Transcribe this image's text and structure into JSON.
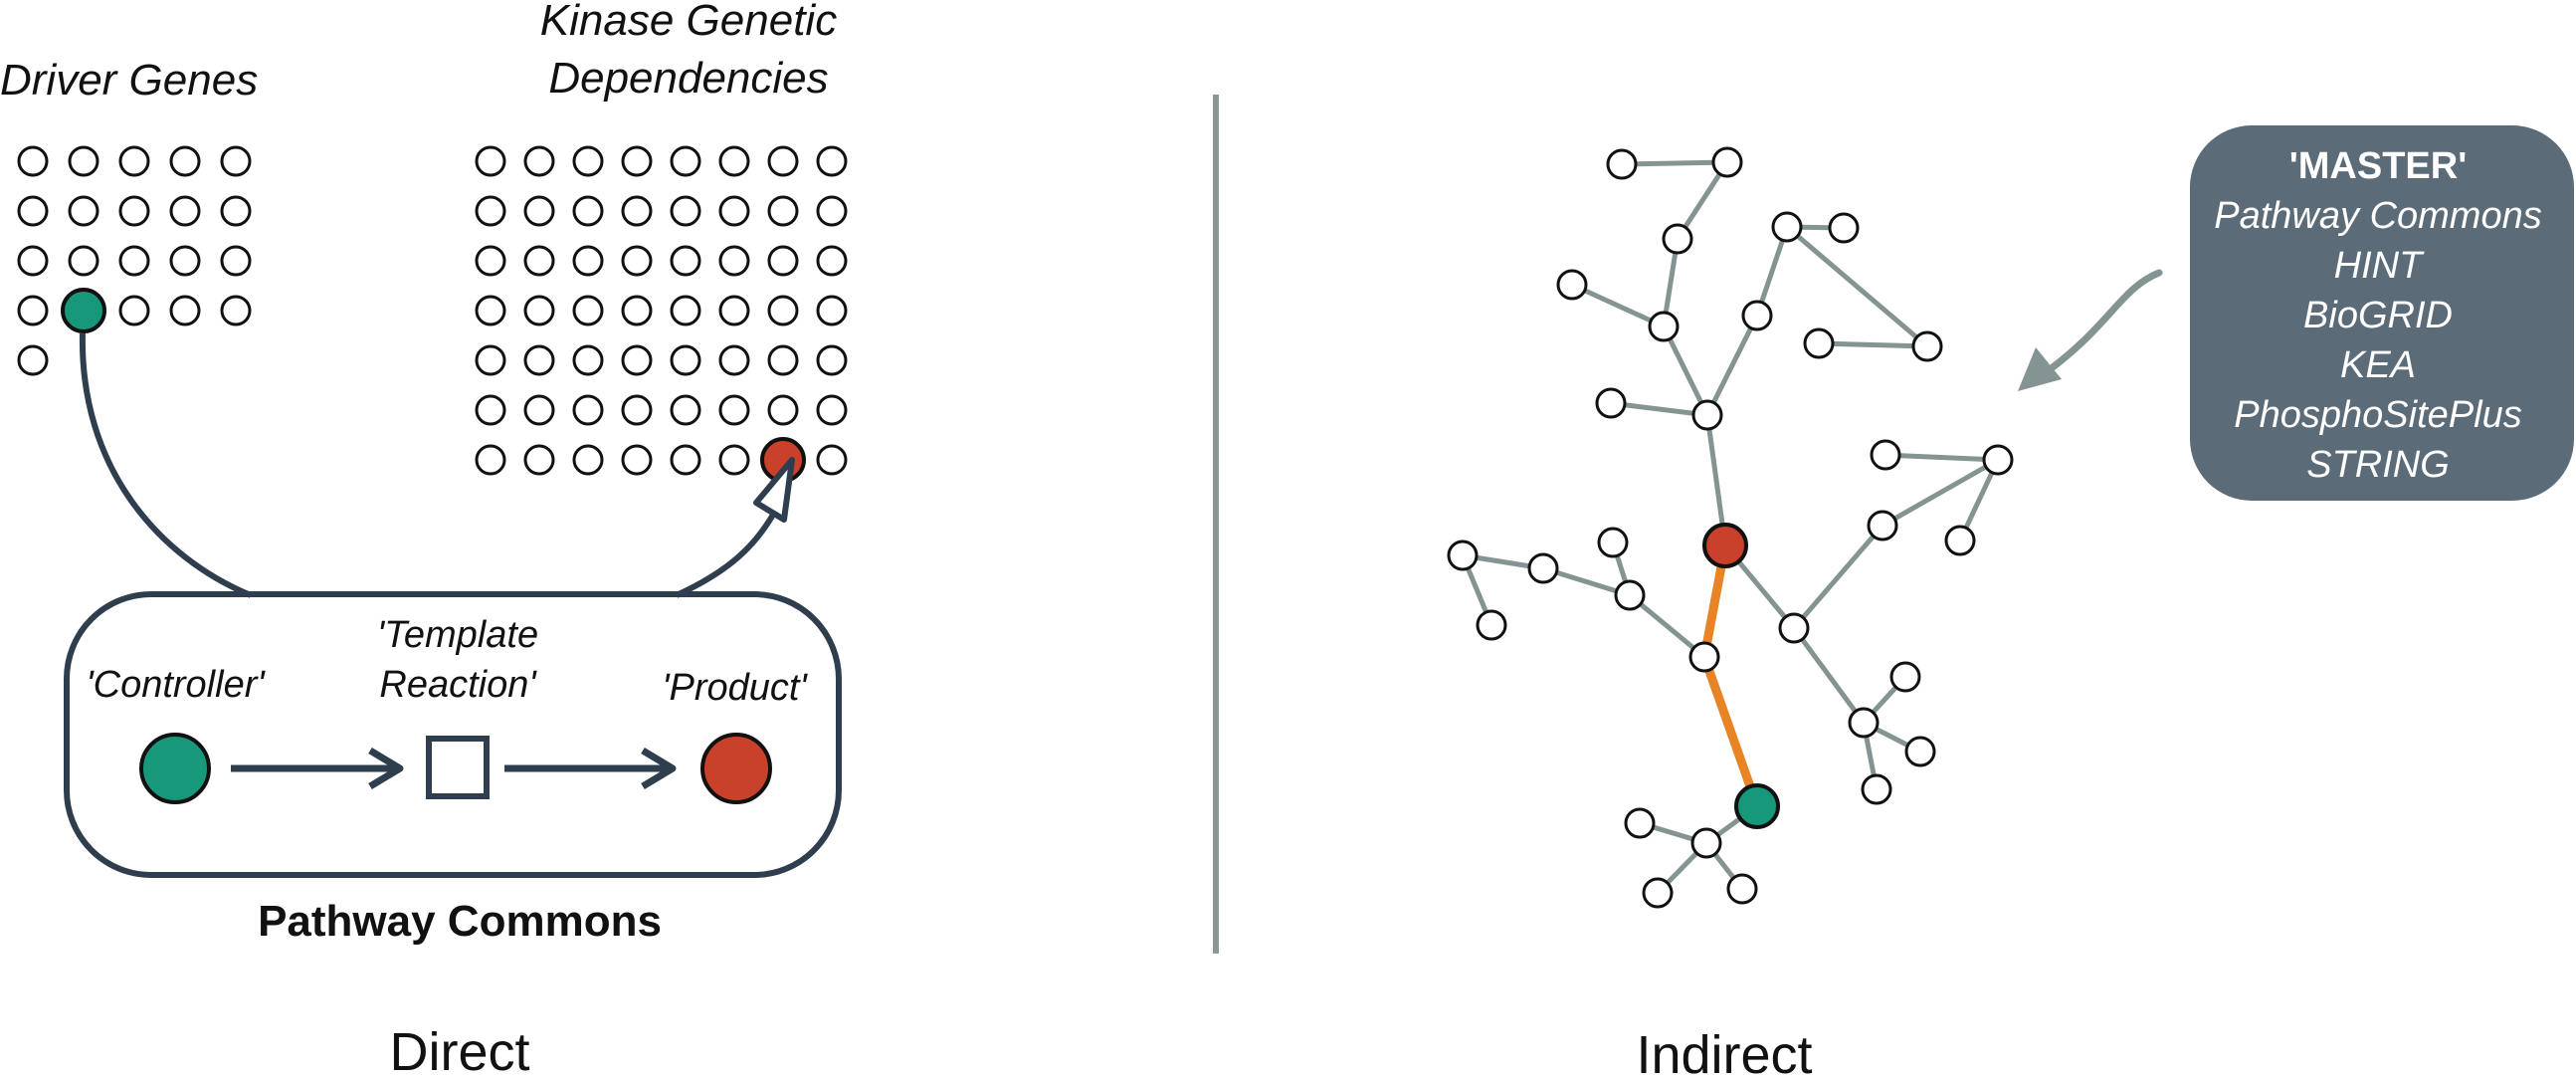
{
  "colors": {
    "teal": "#17987A",
    "red": "#C9402B",
    "navy": "#2F3E4E",
    "edge_gray": "#849492",
    "orange": "#E88425",
    "panel": "#5C6B78",
    "divider": "#8C9897"
  },
  "direct": {
    "label_driver_genes": "Driver Genes",
    "label_kinase_line1": "Kinase Genetic",
    "label_kinase_line2": "Dependencies",
    "controller_label": "'Controller'",
    "template_line1": "'Template",
    "template_line2": "Reaction'",
    "product_label": "'Product'",
    "box_caption": "Pathway Commons",
    "panel_caption": "Direct",
    "driver_rows": [
      5,
      5,
      5,
      5,
      1
    ],
    "driver_highlight": {
      "row": 3,
      "col": 1
    },
    "kinase_rows": [
      8,
      8,
      8,
      8,
      8,
      8,
      8
    ],
    "kinase_highlight": {
      "row": 6,
      "col": 6
    }
  },
  "indirect": {
    "panel_caption": "Indirect",
    "sources": {
      "title": "'MASTER'",
      "items": [
        "Pathway Commons",
        "HINT",
        "BioGRID",
        "KEA",
        "PhosphoSitePlus",
        "STRING"
      ]
    }
  }
}
